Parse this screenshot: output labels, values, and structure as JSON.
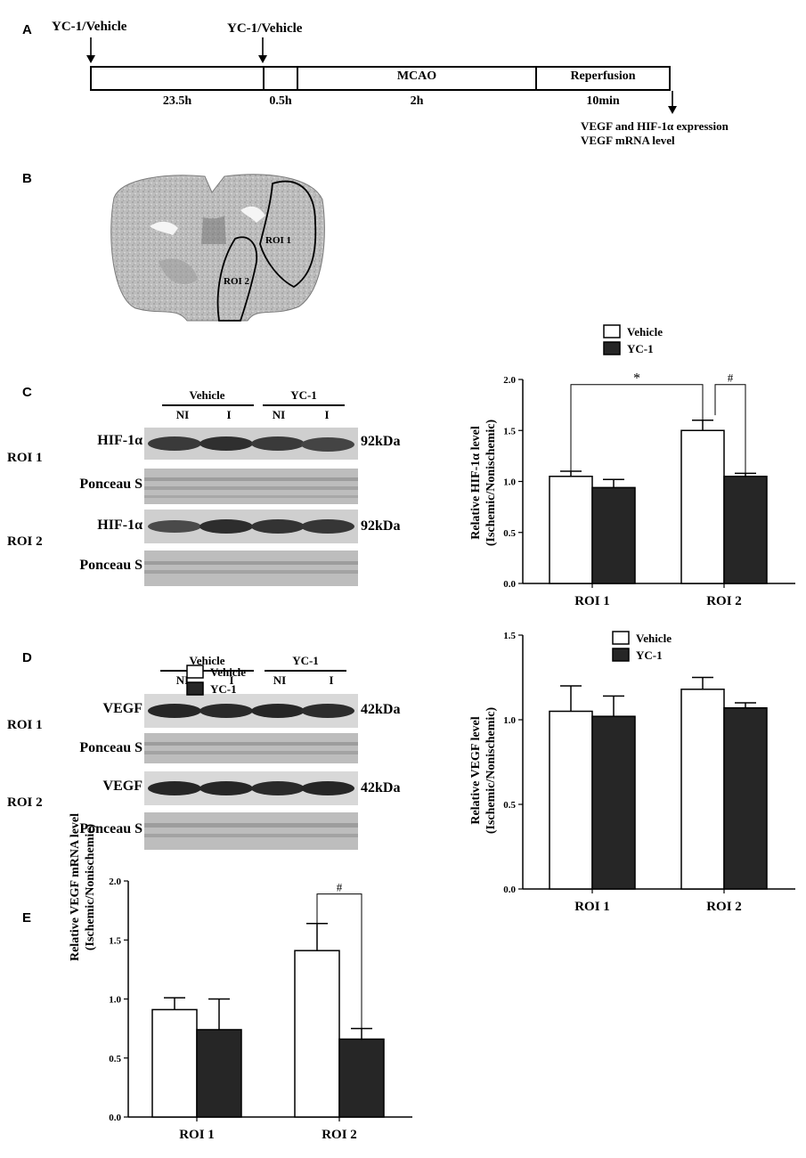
{
  "panels": {
    "a": "A",
    "b": "B",
    "c": "C",
    "d": "D",
    "e": "E"
  },
  "timeline": {
    "treat1": "YC-1/Vehicle",
    "treat2": "YC-1/Vehicle",
    "seg1": "23.5h",
    "seg2": "0.5h",
    "seg3": "2h",
    "seg4": "10min",
    "mcao": "MCAO",
    "reperfusion": "Reperfusion",
    "readout1": "VEGF and HIF-1α expression",
    "readout2": "VEGF mRNA level"
  },
  "brain": {
    "roi1": "ROI 1",
    "roi2": "ROI 2"
  },
  "blot_c": {
    "groups": [
      "Vehicle",
      "YC-1"
    ],
    "lanes": [
      "NI",
      "I",
      "NI",
      "I"
    ],
    "rows": [
      {
        "roi": "ROI 1",
        "label": "HIF-1α",
        "kda": "92kDa"
      },
      {
        "label": "Ponceau S"
      },
      {
        "roi": "ROI 2",
        "label": "HIF-1α",
        "kda": "92kDa"
      },
      {
        "label": "Ponceau S"
      }
    ]
  },
  "blot_d": {
    "groups": [
      "Vehicle",
      "YC-1"
    ],
    "lanes": [
      "NI",
      "I",
      "NI",
      "I"
    ],
    "rows": [
      {
        "roi": "ROI 1",
        "label": "VEGF",
        "kda": "42kDa"
      },
      {
        "label": "Ponceau S"
      },
      {
        "roi": "ROI 2",
        "label": "VEGF",
        "kda": "42kDa"
      },
      {
        "label": "Ponceau S"
      }
    ]
  },
  "chart_data": [
    {
      "id": "C",
      "type": "bar",
      "ylabel_line1": "Relative HIF-1α level",
      "ylabel_line2": "(Ischemic/Nonischemic)",
      "categories": [
        "ROI 1",
        "ROI 2"
      ],
      "series": [
        {
          "name": "Vehicle",
          "values": [
            1.05,
            1.5
          ],
          "errors": [
            0.05,
            0.1
          ],
          "color": "#ffffff"
        },
        {
          "name": "YC-1",
          "values": [
            0.94,
            1.05
          ],
          "errors": [
            0.08,
            0.03
          ],
          "color": "#262626"
        }
      ],
      "ylim": [
        0,
        2.0
      ],
      "yticks": [
        "0.0",
        "0.5",
        "1.0",
        "1.5",
        "2.0"
      ],
      "legend": "top",
      "annotations": [
        "*",
        "#"
      ]
    },
    {
      "id": "D",
      "type": "bar",
      "ylabel_line1": "Relative VEGF level",
      "ylabel_line2": "(Ischemic/Nonischemic)",
      "categories": [
        "ROI 1",
        "ROI 2"
      ],
      "series": [
        {
          "name": "Vehicle",
          "values": [
            1.05,
            1.18
          ],
          "errors": [
            0.15,
            0.07
          ],
          "color": "#ffffff"
        },
        {
          "name": "YC-1",
          "values": [
            1.02,
            1.07
          ],
          "errors": [
            0.12,
            0.03
          ],
          "color": "#262626"
        }
      ],
      "ylim": [
        0,
        1.5
      ],
      "yticks": [
        "0.0",
        "0.5",
        "1.0",
        "1.5"
      ],
      "legend": "top-inside",
      "annotations": []
    },
    {
      "id": "E",
      "type": "bar",
      "ylabel_line1": "Relative VEGF mRNA level",
      "ylabel_line2": "(Ischemic/Nonischemic)",
      "categories": [
        "ROI 1",
        "ROI 2"
      ],
      "series": [
        {
          "name": "Vehicle",
          "values": [
            0.91,
            1.41
          ],
          "errors": [
            0.1,
            0.23
          ],
          "color": "#ffffff"
        },
        {
          "name": "YC-1",
          "values": [
            0.74,
            0.66
          ],
          "errors": [
            0.26,
            0.09
          ],
          "color": "#262626"
        }
      ],
      "ylim": [
        0,
        2.0
      ],
      "yticks": [
        "0.0",
        "0.5",
        "1.0",
        "1.5",
        "2.0"
      ],
      "legend": "top-left",
      "annotations": [
        "#"
      ]
    }
  ]
}
